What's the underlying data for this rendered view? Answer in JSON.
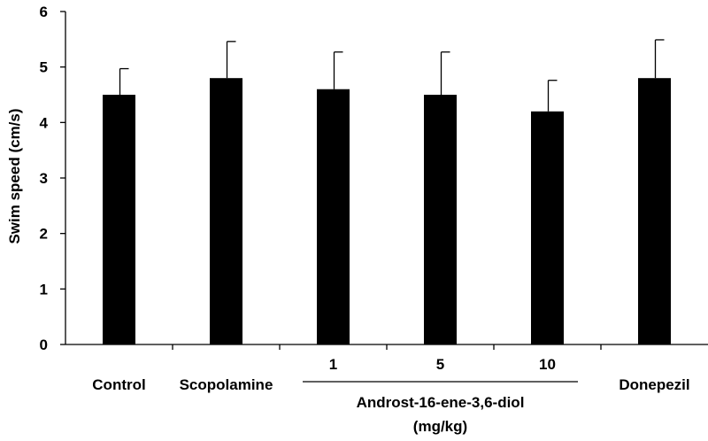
{
  "chart_data": {
    "type": "bar",
    "title": "",
    "xlabel": "",
    "ylabel": "Swim speed (cm/s)",
    "ylim": [
      0,
      6
    ],
    "yticks": [
      0,
      1,
      2,
      3,
      4,
      5,
      6
    ],
    "categories": [
      "Control",
      "Scopolamine",
      "1",
      "5",
      "10",
      "Donepezil"
    ],
    "values": [
      4.5,
      4.8,
      4.6,
      4.5,
      4.2,
      4.8
    ],
    "errors": [
      0.47,
      0.66,
      0.67,
      0.77,
      0.56,
      0.69
    ],
    "group_label": {
      "line1": "Androst-16-ene-3,6-diol",
      "line2": "(mg/kg)",
      "members": [
        "1",
        "5",
        "10"
      ]
    },
    "bar_color": "#000000",
    "grid": false,
    "legend": "none"
  }
}
